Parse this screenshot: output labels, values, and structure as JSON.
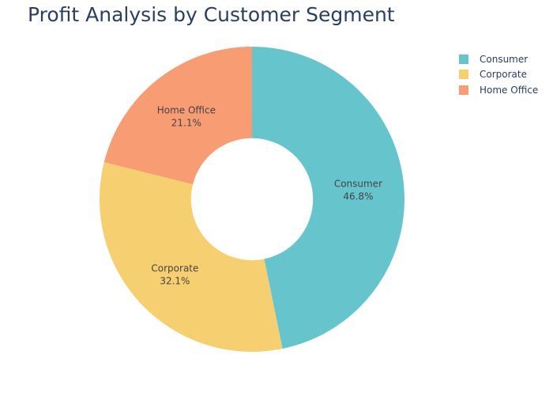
{
  "chart_data": {
    "type": "pie",
    "title": "Profit Analysis by Customer Segment",
    "hole": 0.4,
    "legend_position": "top-right",
    "slices": [
      {
        "label": "Consumer",
        "value": 46.8,
        "text": "46.8%",
        "color": "#66c5cc"
      },
      {
        "label": "Corporate",
        "value": 32.1,
        "text": "32.1%",
        "color": "#f6cf71"
      },
      {
        "label": "Home Office",
        "value": 21.1,
        "text": "21.1%",
        "color": "#f89c74"
      }
    ],
    "legend": [
      "Consumer",
      "Corporate",
      "Home Office"
    ]
  }
}
